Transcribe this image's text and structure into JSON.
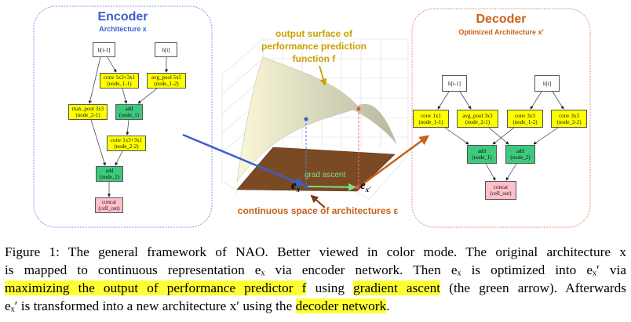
{
  "encoder": {
    "title": "Encoder",
    "subtitle": "Architecture x",
    "nodes": {
      "h_prev": "h[i-1]",
      "h_cur": "h[i]",
      "n11": [
        "conv 1x3+3x1",
        "(node_1-1)"
      ],
      "n12": [
        "avg_pool 5x5",
        "(node_1-2)"
      ],
      "n21": [
        "max_pool 3x3",
        "(node_2-1)"
      ],
      "add1": [
        "add",
        "(node_1)"
      ],
      "n22": [
        "conv 1x3+3x1",
        "(node_2-2)"
      ],
      "add2": [
        "add",
        "(node_2)"
      ],
      "concat": [
        "concat",
        "(cell_out)"
      ]
    }
  },
  "decoder": {
    "title": "Decoder",
    "subtitle": "Optimized Architecture x′",
    "nodes": {
      "h_prev": "h[i-1]",
      "h_cur": "h[i]",
      "n11": [
        "conv 1x1",
        "(node_1-1)"
      ],
      "n21": [
        "avg_pool 3x3",
        "(node_2-1)"
      ],
      "n12": [
        "conv 3x3",
        "(node_1-2)"
      ],
      "n22": [
        "conv 3x3",
        "(node_2-2)"
      ],
      "add1": [
        "add",
        "(node_1)"
      ],
      "add2": [
        "add",
        "(node_2)"
      ],
      "concat": [
        "concat",
        "(cell_out)"
      ]
    }
  },
  "surface": {
    "label": [
      "output surface of",
      "performance prediction",
      "function f"
    ],
    "plane_label": "continuous space of architectures ε",
    "arrow_label": "grad ascent",
    "ex": "e",
    "ex_sub": "x",
    "exp_sub": "x′"
  },
  "colors": {
    "encoder": "#3a5fcd",
    "decoder": "#c8621a",
    "surface_label": "#c9a000",
    "green": "#7ee07e",
    "highlight": "#ffff33"
  },
  "caption": {
    "l1": "Figure 1: The general framework of NAO. Better viewed in color mode. The original architecture x",
    "l2": "is mapped to continuous representation eₓ via encoder network. Then eₓ is optimized into eₓ′ via",
    "l3a": "maximizing the output of performance predictor f",
    "l3b": " using ",
    "l3c": "gradient ascent",
    "l3d": " (the green arrow). Afterwards",
    "l4a": "eₓ′ is transformed into a new architecture x′ using the ",
    "l4b": "decoder network",
    "l4c": "."
  }
}
